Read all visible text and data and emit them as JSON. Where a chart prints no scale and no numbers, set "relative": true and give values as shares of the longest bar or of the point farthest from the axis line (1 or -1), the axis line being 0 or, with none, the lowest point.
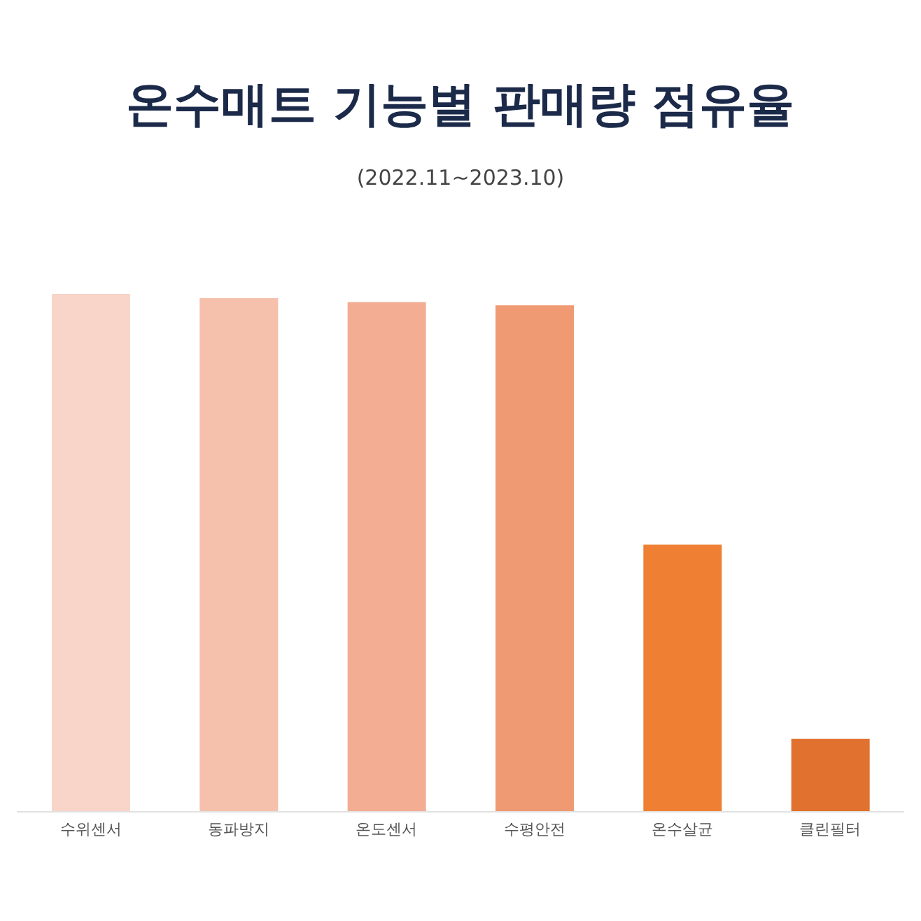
{
  "chart_data": {
    "type": "bar",
    "title": "온수매트 기능별 판매량 점유율",
    "subtitle": "(2022.11~2023.10)",
    "relative": true,
    "categories": [
      "수위센서",
      "동파방지",
      "온도센서",
      "수평안전",
      "온수살균",
      "클린필터"
    ],
    "values": [
      1,
      0.992,
      0.984,
      0.978,
      0.516,
      0.141
    ],
    "colors": [
      "#f8d5c8",
      "#f5c1ad",
      "#f2ad93",
      "#ef9a72",
      "#ee7f33",
      "#e0712e"
    ],
    "grid": false,
    "legend": false
  }
}
